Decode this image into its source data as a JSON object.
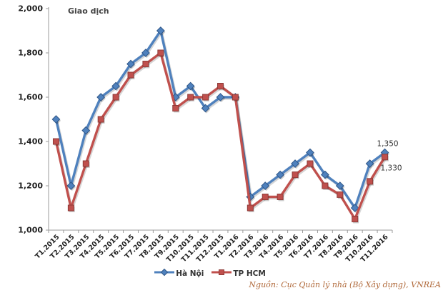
{
  "title": "Giao dịch",
  "source_note": "Nguồn: Cục Quản lý nhà (Bộ Xây dựng), VNREA",
  "colors": {
    "hanoi": "#4F81BD",
    "hanoi_edge": "#2E5586",
    "hcm": "#C0504D",
    "hcm_edge": "#8E3B38",
    "axis": "#9B9B9B",
    "tick_label": "#1F1F1F",
    "annotation": "#333333",
    "source": "#B0693A",
    "background": "#FFFFFF"
  },
  "chart_data": {
    "type": "line",
    "title": "Giao dịch",
    "categories": [
      "T1.2015",
      "T2.2015",
      "T3.2015",
      "T4.2015",
      "T5.2015",
      "T6.2015",
      "T7.2015",
      "T8.2015",
      "T9.2015",
      "T10.2015",
      "T11.2015",
      "T12.2015",
      "T1.2016",
      "T2.2016",
      "T3.2016",
      "T4.2016",
      "T5.2016",
      "T6.2016",
      "T7.2016",
      "T8.2016",
      "T9.2016",
      "T10.2016",
      "T11.2016"
    ],
    "series": [
      {
        "name": "Hà Nội",
        "marker": "diamond",
        "color": "#4F81BD",
        "values": [
          1500,
          1200,
          1450,
          1600,
          1650,
          1750,
          1800,
          1900,
          1600,
          1650,
          1550,
          1600,
          1600,
          1150,
          1200,
          1250,
          1300,
          1350,
          1250,
          1200,
          1100,
          1300,
          1350
        ]
      },
      {
        "name": "TP HCM",
        "marker": "square",
        "color": "#C0504D",
        "values": [
          1400,
          1100,
          1300,
          1500,
          1600,
          1700,
          1750,
          1800,
          1550,
          1600,
          1600,
          1650,
          1600,
          1100,
          1150,
          1150,
          1250,
          1300,
          1200,
          1160,
          1050,
          1220,
          1330
        ]
      }
    ],
    "ylim": [
      1000,
      2000
    ],
    "ytick_step": 200,
    "ytick_labels": [
      "1,000",
      "1,200",
      "1,400",
      "1,600",
      "1,800",
      "2,000"
    ],
    "xlabel": "",
    "ylabel": "",
    "grid": false,
    "legend_position": "bottom",
    "annotations": [
      {
        "series": 0,
        "category": "T11.2016",
        "text": "1,350"
      },
      {
        "series": 1,
        "category": "T11.2016",
        "text": "1,330"
      }
    ]
  }
}
